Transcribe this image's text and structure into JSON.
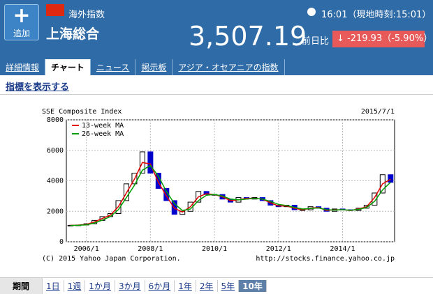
{
  "header": {
    "button": "追加",
    "category": "海外指数",
    "name": "上海総合",
    "time": "16:01（現地時刻:15:01）",
    "price": "3,507.19",
    "change_label": "前日比",
    "change": "-219.93（-5.90%）"
  },
  "tabs": [
    "詳細情報",
    "チャート",
    "ニュース",
    "掲示板",
    "アジア・オセアニアの指数"
  ],
  "active_tab": 1,
  "indicator_link": "指標を表示する",
  "chart_data": {
    "type": "candlestick",
    "title": "SSE Composite Index",
    "date": "2015/7/1",
    "x": [
      null,
      null,
      "2006/1",
      null,
      null,
      null,
      null,
      null,
      null,
      null,
      "2008/1",
      null,
      null,
      null,
      null,
      null,
      null,
      null,
      "2010/1",
      null,
      null,
      null,
      null,
      null,
      null,
      null,
      "2012/1",
      null,
      null,
      null,
      null,
      null,
      null,
      null,
      "2014/1",
      null,
      null,
      null,
      null,
      null,
      null
    ],
    "open": [
      1070,
      1080,
      1100,
      1180,
      1400,
      1650,
      1850,
      2700,
      3800,
      4500,
      5900,
      4500,
      3500,
      2700,
      1800,
      2000,
      2600,
      3300,
      3100,
      3100,
      2800,
      2600,
      2900,
      2800,
      2900,
      2700,
      2400,
      2300,
      2400,
      2100,
      2100,
      2300,
      2200,
      2000,
      2150,
      2100,
      2050,
      2200,
      2400,
      3200,
      4400
    ],
    "close": [
      1080,
      1100,
      1180,
      1400,
      1650,
      1850,
      2700,
      3800,
      4500,
      5900,
      4500,
      3500,
      2700,
      1800,
      2000,
      2600,
      3300,
      3100,
      3100,
      2800,
      2600,
      2900,
      2800,
      2900,
      2700,
      2400,
      2300,
      2400,
      2100,
      2100,
      2300,
      2200,
      2000,
      2150,
      2100,
      2050,
      2200,
      2400,
      3200,
      4400,
      3900
    ],
    "up_color": "#ffffff",
    "down_color": "#0000cc",
    "series": [
      {
        "name": "13-week MA",
        "color": "#e00000",
        "values": [
          1075,
          1090,
          1140,
          1300,
          1530,
          1750,
          2300,
          3200,
          4100,
          5200,
          5100,
          3900,
          3000,
          2200,
          1950,
          2300,
          2950,
          3150,
          3100,
          2950,
          2700,
          2750,
          2850,
          2850,
          2800,
          2550,
          2350,
          2350,
          2200,
          2100,
          2200,
          2250,
          2050,
          2100,
          2100,
          2050,
          2150,
          2300,
          2900,
          3800,
          4100
        ]
      },
      {
        "name": "26-week MA",
        "color": "#00a000",
        "values": [
          1070,
          1080,
          1110,
          1230,
          1420,
          1650,
          2100,
          2900,
          3700,
          4700,
          5000,
          4300,
          3300,
          2500,
          2050,
          2150,
          2700,
          3050,
          3100,
          3000,
          2800,
          2750,
          2800,
          2850,
          2800,
          2650,
          2450,
          2380,
          2250,
          2150,
          2180,
          2220,
          2100,
          2080,
          2100,
          2070,
          2120,
          2250,
          2650,
          3400,
          3900
        ]
      }
    ],
    "ylim": [
      0,
      8000
    ],
    "yticks": [
      0,
      2000,
      4000,
      6000,
      8000
    ],
    "grid": true,
    "legend": "top-left",
    "copyright": "(C) 2015 Yahoo Japan Corporation.",
    "source": "http://stocks.finance.yahoo.co.jp"
  },
  "periods": {
    "label": "期間",
    "options": [
      "1日",
      "1週",
      "1か月",
      "3か月",
      "6か月",
      "1年",
      "2年",
      "5年",
      "10年"
    ],
    "active": 8
  }
}
